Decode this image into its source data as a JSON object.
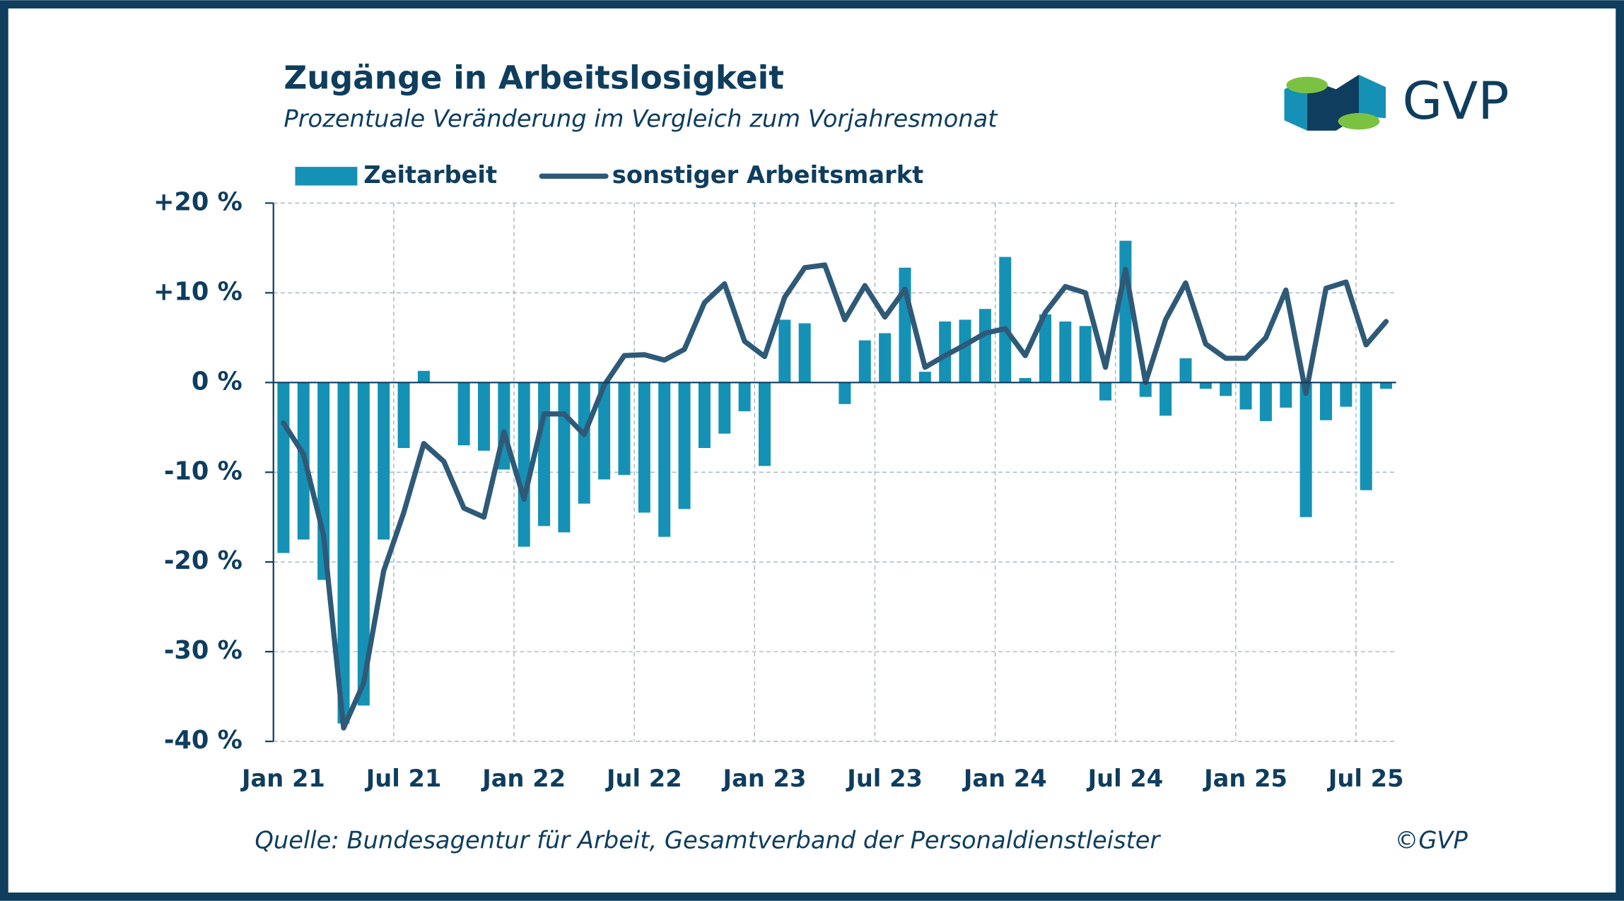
{
  "chart_data": {
    "type": "bar_line",
    "title": "Zugänge in Arbeitslosigkeit",
    "subtitle": "Prozentuale Veränderung im Vergleich zum Vorjahresmonat",
    "source": "Quelle: Bundesagentur für Arbeit, Gesamtverband der Personaldienstleister",
    "copyright": "©GVP",
    "logo": "GVP",
    "categories": [
      "Jan 21",
      null,
      null,
      null,
      null,
      null,
      "Jul 21",
      null,
      null,
      null,
      null,
      null,
      "Jan 22",
      null,
      null,
      null,
      null,
      null,
      "Jul 22",
      null,
      null,
      null,
      null,
      null,
      "Jan 23",
      null,
      null,
      null,
      null,
      null,
      "Jul 23",
      null,
      null,
      null,
      null,
      null,
      "Jan 24",
      null,
      null,
      null,
      null,
      null,
      "Jul 24",
      null,
      null,
      null,
      null,
      null,
      "Jan 25",
      null,
      null,
      null,
      null,
      null,
      "Jul 25",
      null
    ],
    "series": [
      {
        "name": "Zeitarbeit",
        "kind": "bar",
        "color": "#1591b5",
        "values": [
          -19,
          -17.5,
          -22,
          -38,
          -36,
          -17.5,
          -7.3,
          1.3,
          0,
          -7,
          -7.6,
          -9.7,
          -18.3,
          -16,
          -16.7,
          -13.5,
          -10.8,
          -10.3,
          -14.5,
          -17.2,
          -14.1,
          -7.3,
          -5.7,
          -3.2,
          -9.3,
          7,
          6.6,
          0,
          -2.4,
          4.7,
          5.5,
          12.8,
          1.2,
          6.8,
          7,
          8.2,
          14,
          0.5,
          7.6,
          6.8,
          6.3,
          -2,
          15.8,
          -1.6,
          -3.7,
          2.7,
          -0.7,
          -1.5,
          -3,
          -4.3,
          -2.8,
          -15,
          -4.2,
          -2.7,
          -12,
          -0.7
        ]
      },
      {
        "name": "sonstiger Arbeitsmarkt",
        "kind": "line",
        "color": "#2e5a78",
        "values": [
          -4.5,
          -8,
          -17,
          -38.5,
          -33.5,
          -21,
          -14.5,
          -6.8,
          -8.8,
          -14,
          -15,
          -5.5,
          -13,
          -3.5,
          -3.5,
          -5.8,
          -0.3,
          3,
          3.1,
          2.5,
          3.7,
          8.9,
          11,
          4.6,
          2.9,
          9.5,
          12.8,
          13.1,
          7,
          10.8,
          7.3,
          10.4,
          1.7,
          3,
          4.2,
          5.5,
          6,
          3,
          7.8,
          10.7,
          10,
          1.7,
          12.6,
          0,
          7,
          11.1,
          4.3,
          2.7,
          2.7,
          5,
          10.3,
          -1.2,
          10.5,
          11.2,
          4.2,
          6.8
        ]
      }
    ],
    "ylim": [
      -40,
      20
    ],
    "yticks": [
      {
        "value": 20,
        "label": "+20 %"
      },
      {
        "value": 10,
        "label": "+10 %"
      },
      {
        "value": 0,
        "label": "0 %"
      },
      {
        "value": -10,
        "label": "-10 %"
      },
      {
        "value": -20,
        "label": "-20 %"
      },
      {
        "value": -30,
        "label": "-30 %"
      },
      {
        "value": -40,
        "label": "-40 %"
      }
    ],
    "grid": true
  }
}
